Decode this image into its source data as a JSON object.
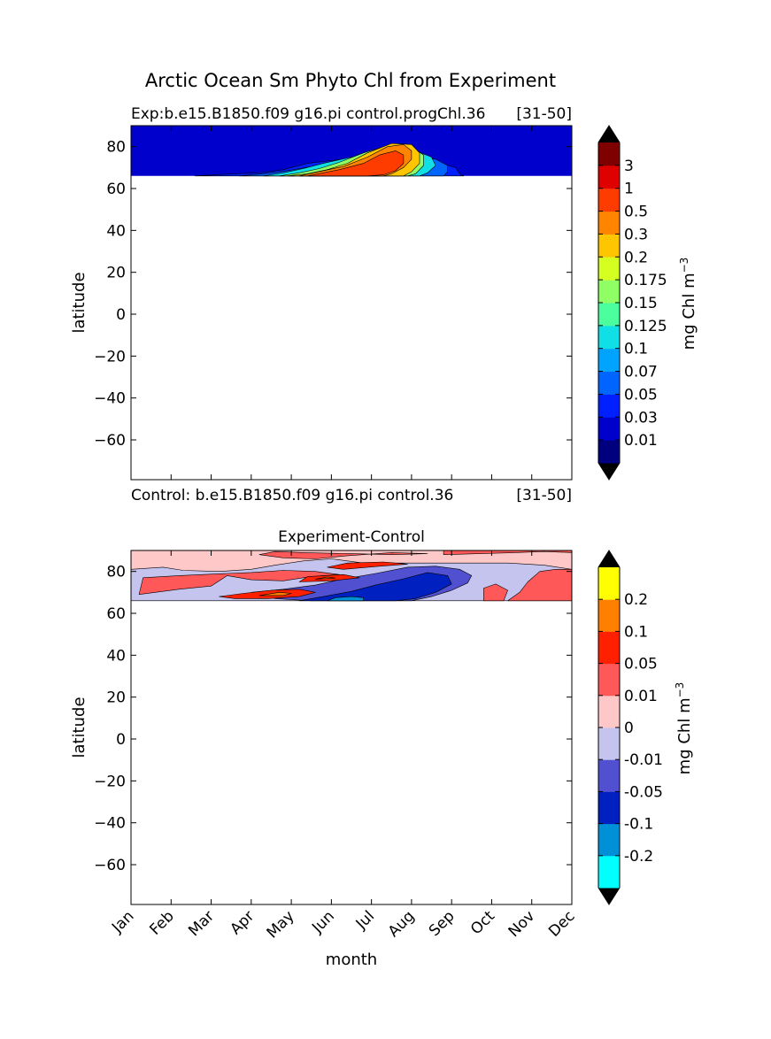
{
  "figure": {
    "suptitle": "Arctic Ocean Sm Phyto Chl from Experiment"
  },
  "chart_data": [
    {
      "type": "heatmap",
      "panel": "top",
      "title_left": "Exp:b.e15.B1850.f09 g16.pi control.progChl.36",
      "title_right": "[31-50]",
      "footer_left": "Control: b.e15.B1850.f09 g16.pi control.36",
      "footer_right": "[31-50]",
      "ylabel": "latitude",
      "xlabel": "",
      "ylim": [
        -79,
        90
      ],
      "yticks": [
        80,
        60,
        40,
        20,
        0,
        -20,
        -40,
        -60
      ],
      "xlim": [
        0,
        11
      ],
      "data_lat_range": [
        66,
        90
      ],
      "colorbar": {
        "label": "mg Chl m",
        "label_sup": "−3",
        "extend": "both",
        "levels": [
          "0.01",
          "0.03",
          "0.05",
          "0.07",
          "0.1",
          "0.125",
          "0.15",
          "0.175",
          "0.2",
          "0.3",
          "0.5",
          "1",
          "3"
        ],
        "colors": [
          "#00007f",
          "#0000cd",
          "#0020ff",
          "#0064ff",
          "#00a4ff",
          "#10e0e6",
          "#4cff9e",
          "#90ff66",
          "#d4ff20",
          "#ffc600",
          "#ff8400",
          "#ff3c00",
          "#df0000",
          "#7f0000"
        ],
        "under_color": "#000000",
        "over_color": "#000000"
      },
      "contours": [
        {
          "level": "0.01",
          "points": [
            [
              0,
              66
            ],
            [
              0,
              90
            ],
            [
              11,
              90
            ],
            [
              11,
              66
            ]
          ]
        },
        {
          "level": "0.03",
          "points": [
            [
              1.6,
              66
            ],
            [
              2.6,
              67
            ],
            [
              3.2,
              67.5
            ],
            [
              3.8,
              69
            ],
            [
              4.4,
              72
            ],
            [
              5.3,
              74
            ],
            [
              6.4,
              74
            ],
            [
              7.1,
              73
            ],
            [
              7.7,
              72
            ],
            [
              8.1,
              70
            ],
            [
              8.2,
              67
            ],
            [
              8.3,
              66
            ]
          ]
        },
        {
          "level": "0.05",
          "points": [
            [
              2.7,
              66
            ],
            [
              3.3,
              67
            ],
            [
              3.9,
              68.5
            ],
            [
              4.5,
              70.5
            ],
            [
              5.2,
              73.5
            ],
            [
              6.3,
              76.5
            ],
            [
              7.1,
              76
            ],
            [
              7.6,
              74
            ],
            [
              7.9,
              71
            ],
            [
              7.9,
              68
            ],
            [
              7.8,
              66
            ]
          ]
        },
        {
          "level": "0.1",
          "points": [
            [
              3.3,
              66
            ],
            [
              3.8,
              67.5
            ],
            [
              4.3,
              69.5
            ],
            [
              4.8,
              72
            ],
            [
              5.5,
              75
            ],
            [
              6.3,
              78
            ],
            [
              7.1,
              78
            ],
            [
              7.5,
              75
            ],
            [
              7.6,
              71
            ],
            [
              7.4,
              67.5
            ],
            [
              7.2,
              66
            ]
          ]
        },
        {
          "level": "0.15",
          "points": [
            [
              3.7,
              66
            ],
            [
              4.2,
              67.5
            ],
            [
              4.7,
              69.5
            ],
            [
              5.2,
              72.5
            ],
            [
              5.8,
              77
            ],
            [
              6.4,
              80.5
            ],
            [
              7.0,
              80
            ],
            [
              7.3,
              76
            ],
            [
              7.3,
              71
            ],
            [
              7.1,
              67
            ],
            [
              6.9,
              66
            ]
          ]
        },
        {
          "level": "0.2",
          "points": [
            [
              3.9,
              66
            ],
            [
              4.4,
              67
            ],
            [
              4.9,
              69
            ],
            [
              5.4,
              72
            ],
            [
              5.9,
              77
            ],
            [
              6.5,
              81.5
            ],
            [
              7.0,
              81
            ],
            [
              7.2,
              77
            ],
            [
              7.2,
              72
            ],
            [
              7.0,
              68
            ],
            [
              6.8,
              66
            ]
          ]
        },
        {
          "level": "0.3",
          "points": [
            [
              4.2,
              66
            ],
            [
              4.8,
              68.5
            ],
            [
              5.3,
              70.5
            ],
            [
              5.9,
              75
            ],
            [
              6.4,
              80
            ],
            [
              6.8,
              81
            ],
            [
              7.0,
              78
            ],
            [
              7.0,
              74
            ],
            [
              6.8,
              70
            ],
            [
              6.5,
              67
            ],
            [
              6.3,
              66
            ]
          ]
        },
        {
          "level": "0.5",
          "points": [
            [
              4.4,
              66
            ],
            [
              5.2,
              69
            ],
            [
              5.8,
              72
            ],
            [
              6.2,
              76
            ],
            [
              6.6,
              78
            ],
            [
              6.8,
              76
            ],
            [
              6.8,
              72
            ],
            [
              6.6,
              68.5
            ],
            [
              6.3,
              66.5
            ],
            [
              5.9,
              66
            ]
          ]
        }
      ]
    },
    {
      "type": "heatmap",
      "panel": "bottom",
      "title": "Experiment-Control",
      "ylabel": "latitude",
      "xlabel": "month",
      "ylim": [
        -79,
        90
      ],
      "yticks": [
        80,
        60,
        40,
        20,
        0,
        -20,
        -40,
        -60
      ],
      "xlim": [
        0,
        11
      ],
      "xticks": [
        "Jan",
        "Feb",
        "Mar",
        "Apr",
        "May",
        "Jun",
        "Jul",
        "Aug",
        "Sep",
        "Oct",
        "Nov",
        "Dec"
      ],
      "data_lat_range": [
        66,
        90
      ],
      "colorbar": {
        "label": "mg Chl m",
        "label_sup": "−3",
        "extend": "both",
        "levels": [
          "-0.2",
          "-0.1",
          "-0.05",
          "-0.01",
          "0",
          "0.01",
          "0.05",
          "0.1",
          "0.2"
        ],
        "colors": [
          "#00ffff",
          "#0090d8",
          "#0020c0",
          "#5050d0",
          "#c4c4ee",
          "#ffc8c8",
          "#ff5858",
          "#ff2000",
          "#ff8000",
          "#ffff00"
        ],
        "under_color": "#000000",
        "over_color": "#000000"
      },
      "contours": [
        {
          "level": "0",
          "points": [
            [
              0,
              66
            ],
            [
              0,
              90
            ],
            [
              11,
              90
            ],
            [
              11,
              66
            ]
          ]
        },
        {
          "level": "-0.01",
          "points": [
            [
              0,
              81
            ],
            [
              0.8,
              82
            ],
            [
              1.3,
              80.5
            ],
            [
              2.2,
              80
            ],
            [
              3.0,
              81
            ],
            [
              3.6,
              83
            ],
            [
              4.3,
              85
            ],
            [
              5.0,
              86
            ],
            [
              5.8,
              84
            ],
            [
              6.7,
              84
            ],
            [
              7.6,
              84
            ],
            [
              8.4,
              84
            ],
            [
              9.4,
              84
            ],
            [
              10.3,
              83
            ],
            [
              11,
              81
            ],
            [
              11,
              66
            ],
            [
              0,
              66
            ]
          ]
        },
        {
          "level": "0.01",
          "points": [
            [
              0.2,
              69
            ],
            [
              1.2,
              71.5
            ],
            [
              2.0,
              73
            ],
            [
              2.4,
              78
            ],
            [
              3.0,
              76
            ],
            [
              3.8,
              75.5
            ],
            [
              4.3,
              77
            ],
            [
              4.8,
              78
            ],
            [
              5.2,
              78.5
            ],
            [
              4.6,
              80
            ],
            [
              3.8,
              80.5
            ],
            [
              3.0,
              79.5
            ],
            [
              2.4,
              79
            ],
            [
              1.2,
              78
            ],
            [
              0.3,
              77
            ]
          ]
        },
        {
          "level": "0.01",
          "points": [
            [
              9.4,
              66
            ],
            [
              9.7,
              70
            ],
            [
              9.9,
              75
            ],
            [
              10.2,
              80
            ],
            [
              10.6,
              81
            ],
            [
              11,
              81
            ],
            [
              11,
              66
            ]
          ]
        },
        {
          "level": "0.01",
          "points": [
            [
              8.8,
              66
            ],
            [
              8.8,
              72
            ],
            [
              9.1,
              74
            ],
            [
              9.4,
              71
            ],
            [
              9.3,
              66
            ]
          ]
        },
        {
          "level": "0.01",
          "points": [
            [
              3.2,
              88
            ],
            [
              3.8,
              86.5
            ],
            [
              4.6,
              86
            ],
            [
              5.4,
              87.5
            ],
            [
              6.5,
              89
            ],
            [
              7.4,
              88.5
            ],
            [
              6.5,
              88
            ],
            [
              5.5,
              88.5
            ],
            [
              4.3,
              89
            ],
            [
              3.6,
              89.5
            ]
          ]
        },
        {
          "level": "0.01",
          "points": [
            [
              7.8,
              88
            ],
            [
              8.7,
              88.5
            ],
            [
              9.6,
              89
            ],
            [
              10.3,
              89.5
            ],
            [
              11,
              89
            ],
            [
              11,
              90
            ],
            [
              7.8,
              90
            ]
          ]
        },
        {
          "level": "-0.05",
          "points": [
            [
              3.0,
              70
            ],
            [
              3.8,
              71.5
            ],
            [
              4.6,
              73.5
            ],
            [
              5.2,
              76
            ],
            [
              6.1,
              79
            ],
            [
              6.9,
              82
            ],
            [
              7.6,
              82.5
            ],
            [
              8.2,
              81
            ],
            [
              8.5,
              78
            ],
            [
              8.4,
              74.5
            ],
            [
              8.0,
              71
            ],
            [
              7.5,
              68
            ],
            [
              7.0,
              66
            ],
            [
              4.5,
              66
            ],
            [
              3.6,
              67
            ]
          ]
        },
        {
          "level": "-0.1",
          "points": [
            [
              4.2,
              66
            ],
            [
              4.8,
              68
            ],
            [
              5.5,
              70.5
            ],
            [
              6.1,
              73.5
            ],
            [
              6.8,
              76.5
            ],
            [
              7.4,
              79.5
            ],
            [
              7.9,
              78
            ],
            [
              8.0,
              74
            ],
            [
              7.6,
              70
            ],
            [
              7.1,
              67
            ],
            [
              6.6,
              66
            ]
          ]
        },
        {
          "level": "-0.2",
          "points": [
            [
              4.9,
              66
            ],
            [
              5.1,
              67.5
            ],
            [
              5.5,
              68
            ],
            [
              5.8,
              67.5
            ],
            [
              5.8,
              66
            ]
          ]
        },
        {
          "level": "0.05",
          "points": [
            [
              2.2,
              68
            ],
            [
              2.8,
              69.5
            ],
            [
              3.5,
              71
            ],
            [
              4.2,
              71.5
            ],
            [
              4.6,
              70
            ],
            [
              4.2,
              68
            ],
            [
              3.4,
              67
            ],
            [
              2.6,
              67
            ]
          ]
        },
        {
          "level": "0.05",
          "points": [
            [
              4.2,
              75
            ],
            [
              5.0,
              75.5
            ],
            [
              5.7,
              77
            ],
            [
              5.3,
              78.5
            ],
            [
              4.4,
              77.5
            ]
          ]
        },
        {
          "level": "0.05",
          "points": [
            [
              5.3,
              81
            ],
            [
              6.2,
              82.5
            ],
            [
              6.9,
              83.5
            ],
            [
              6.3,
              84.5
            ],
            [
              5.4,
              84
            ],
            [
              4.9,
              82
            ]
          ]
        },
        {
          "level": "0.1",
          "points": [
            [
              3.2,
              68.5
            ],
            [
              3.7,
              70
            ],
            [
              4.0,
              69.5
            ],
            [
              3.8,
              68.5
            ]
          ]
        },
        {
          "level": "0.1",
          "points": [
            [
              4.6,
              76.3
            ],
            [
              5.1,
              76.8
            ],
            [
              4.9,
              77.3
            ]
          ]
        }
      ]
    }
  ]
}
